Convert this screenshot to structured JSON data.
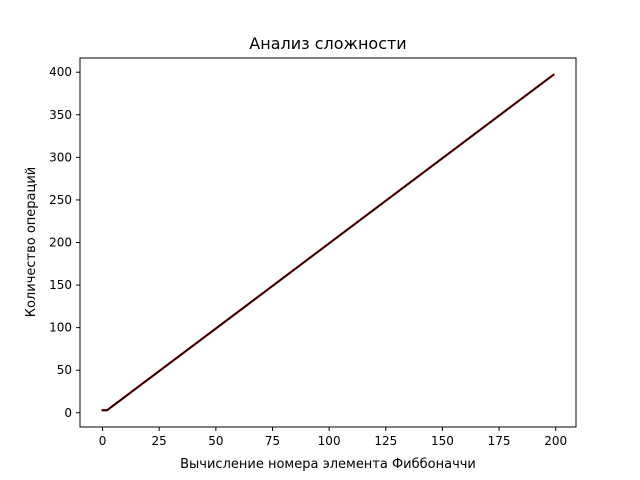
{
  "chart_data": {
    "type": "line",
    "title": "Анализ сложности",
    "xlabel": "Вычисление номера элемента Фиббоначчи",
    "ylabel": "Количество операций",
    "xlim": [
      -9.95,
      208.95
    ],
    "ylim": [
      -16.7,
      416.7
    ],
    "x_ticks": [
      0,
      25,
      50,
      75,
      100,
      125,
      150,
      175,
      200
    ],
    "y_ticks": [
      0,
      50,
      100,
      150,
      200,
      250,
      300,
      350,
      400
    ],
    "grid": false,
    "series": [
      {
        "color": "#ff0000",
        "x": [
          0,
          1,
          2,
          199
        ],
        "y": [
          3,
          3,
          3,
          397
        ]
      },
      {
        "color": "#000000",
        "x": [
          0,
          1,
          2,
          199
        ],
        "y": [
          3,
          3,
          3,
          397
        ]
      }
    ]
  }
}
